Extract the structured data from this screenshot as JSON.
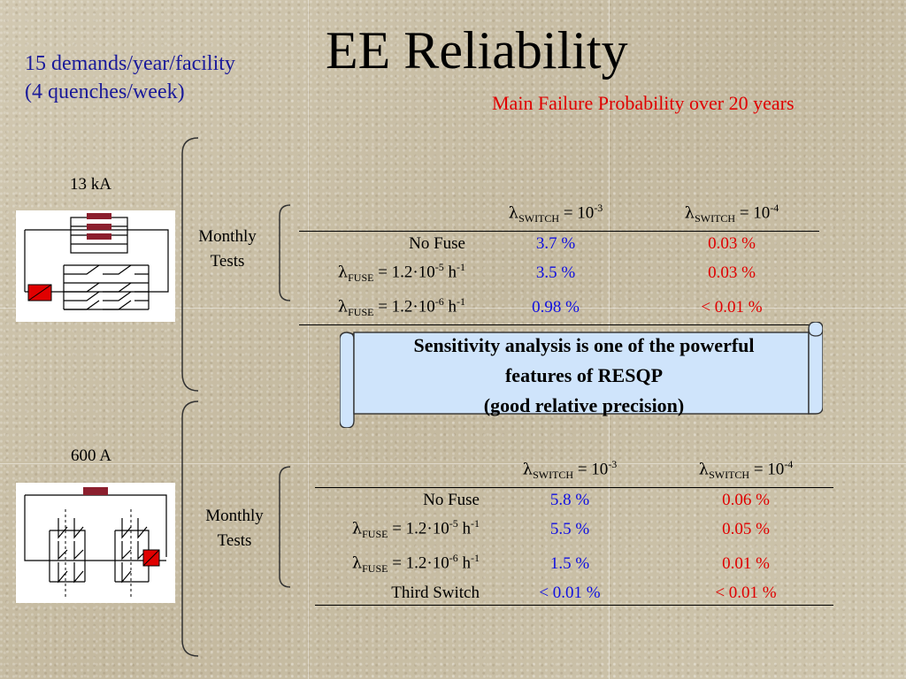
{
  "title": "EE Reliability",
  "demands": {
    "line1": "15 demands/year/facility",
    "line2": "(4 quenches/week)"
  },
  "subtitle": "Main Failure Probability over 20 years",
  "colors": {
    "subtitle": "#e00000",
    "demands": "#1a1a9a",
    "low_rate_values": "#1010e0",
    "high_rate_values": "#e00000",
    "banner_fill": "#cfe4fb"
  },
  "top": {
    "current": "13 kA",
    "monthly_line1": "Monthly",
    "monthly_line2": "Tests",
    "headers": [
      {
        "prefix": "λ",
        "sub": "SWITCH",
        "mid": " = 10",
        "exp": "-3"
      },
      {
        "prefix": "λ",
        "sub": "SWITCH",
        "mid": " = 10",
        "exp": "-4"
      }
    ],
    "rows": [
      {
        "label": "No Fuse",
        "v1": "3.7 %",
        "v2": "0.03 %"
      },
      {
        "label_prefix": "λ",
        "label_sub": "FUSE",
        "label_mid": " = 1.2·10",
        "label_exp": "-5",
        "label_tail": " h",
        "label_exp2": "-1",
        "v1": "3.5 %",
        "v2": "0.03 %"
      },
      {
        "label_prefix": "λ",
        "label_sub": "FUSE",
        "label_mid": " = 1.2·10",
        "label_exp": "-6",
        "label_tail": " h",
        "label_exp2": "-1",
        "v1": "0.98 %",
        "v2": "< 0.01 %"
      }
    ]
  },
  "banner": {
    "line1": "Sensitivity analysis is one of the powerful",
    "line2": "features of RESQP",
    "line3": "(good relative precision)"
  },
  "bottom": {
    "current": "600 A",
    "monthly_line1": "Monthly",
    "monthly_line2": "Tests",
    "headers": [
      {
        "prefix": "λ",
        "sub": "SWITCH",
        "mid": " = 10",
        "exp": "-3"
      },
      {
        "prefix": "λ",
        "sub": "SWITCH",
        "mid": " = 10",
        "exp": "-4"
      }
    ],
    "rows": [
      {
        "label": "No Fuse",
        "v1": "5.8 %",
        "v2": "0.06 %"
      },
      {
        "label_prefix": "λ",
        "label_sub": "FUSE",
        "label_mid": " = 1.2·10",
        "label_exp": "-5",
        "label_tail": " h",
        "label_exp2": "-1",
        "v1": "5.5 %",
        "v2": "0.05 %"
      },
      {
        "label_prefix": "λ",
        "label_sub": "FUSE",
        "label_mid": " = 1.2·10",
        "label_exp": "-6",
        "label_tail": " h",
        "label_exp2": "-1",
        "v1": "1.5 %",
        "v2": "0.01 %"
      },
      {
        "label": "Third Switch",
        "v1": "< 0.01 %",
        "v2": "< 0.01 %"
      }
    ]
  }
}
